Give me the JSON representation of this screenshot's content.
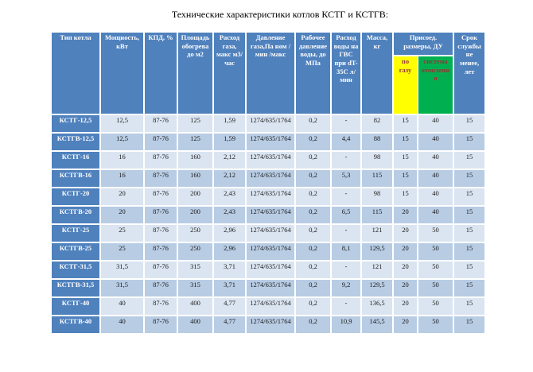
{
  "title": "Технические характеристики котлов КСТГ и КСТГВ:",
  "table": {
    "group_header": "Присоед. размеры, ДУ",
    "columns": [
      {
        "key": "type",
        "label": "Тип котла"
      },
      {
        "key": "power",
        "label": "Мощность, кВт"
      },
      {
        "key": "efficiency",
        "label": "КПД, %"
      },
      {
        "key": "area",
        "label": "Площадь обогрева до м2"
      },
      {
        "key": "gas_flow",
        "label": "Расход газа, макс м3/час"
      },
      {
        "key": "gas_pressure",
        "label": "Давление газа,Па ном /мин /макс"
      },
      {
        "key": "water_pressure",
        "label": "Рабочее давление воды, до МПа"
      },
      {
        "key": "dhw_flow",
        "label": "Расход воды на ГВС при dT-35С л/мин"
      },
      {
        "key": "mass",
        "label": "Масса, кг"
      },
      {
        "key": "gas_du",
        "label": "по газу"
      },
      {
        "key": "heating_du",
        "label": "система отопления"
      },
      {
        "key": "service_life",
        "label": "Срок службы не менее, лет"
      }
    ],
    "rows": [
      [
        "КСТГ-12,5",
        "12,5",
        "87-76",
        "125",
        "1,59",
        "1274/635/1764",
        "0,2",
        "-",
        "82",
        "15",
        "40",
        "15"
      ],
      [
        "КСТГВ-12,5",
        "12,5",
        "87-76",
        "125",
        "1,59",
        "1274/635/1764",
        "0,2",
        "4,4",
        "88",
        "15",
        "40",
        "15"
      ],
      [
        "КСТГ-16",
        "16",
        "87-76",
        "160",
        "2,12",
        "1274/635/1764",
        "0,2",
        "-",
        "98",
        "15",
        "40",
        "15"
      ],
      [
        "КСТГВ-16",
        "16",
        "87-76",
        "160",
        "2,12",
        "1274/635/1764",
        "0,2",
        "5,3",
        "115",
        "15",
        "40",
        "15"
      ],
      [
        "КСТГ-20",
        "20",
        "87-76",
        "200",
        "2,43",
        "1274/635/1764",
        "0,2",
        "-",
        "98",
        "15",
        "40",
        "15"
      ],
      [
        "КСТГВ-20",
        "20",
        "87-76",
        "200",
        "2,43",
        "1274/635/1764",
        "0,2",
        "6,5",
        "115",
        "20",
        "40",
        "15"
      ],
      [
        "КСТГ-25",
        "25",
        "87-76",
        "250",
        "2,96",
        "1274/635/1764",
        "0,2",
        "-",
        "121",
        "20",
        "50",
        "15"
      ],
      [
        "КСТГВ-25",
        "25",
        "87-76",
        "250",
        "2,96",
        "1274/635/1764",
        "0,2",
        "8,1",
        "129,5",
        "20",
        "50",
        "15"
      ],
      [
        "КСТГ-31,5",
        "31,5",
        "87-76",
        "315",
        "3,71",
        "1274/635/1764",
        "0,2",
        "-",
        "121",
        "20",
        "50",
        "15"
      ],
      [
        "КСТГВ-31,5",
        "31,5",
        "87-76",
        "315",
        "3,71",
        "1274/635/1764",
        "0,2",
        "9,2",
        "129,5",
        "20",
        "50",
        "15"
      ],
      [
        "КСТГ-40",
        "40",
        "87-76",
        "400",
        "4,77",
        "1274/635/1764",
        "0,2",
        "-",
        "136,5",
        "20",
        "50",
        "15"
      ],
      [
        "КСТГВ-40",
        "40",
        "87-76",
        "400",
        "4,77",
        "1274/635/1764",
        "0,2",
        "10,9",
        "145,5",
        "20",
        "50",
        "15"
      ]
    ],
    "colors": {
      "header_bg": "#4f81bd",
      "header_text": "#ffffff",
      "row_light": "#dbe5f1",
      "row_medium": "#b8cce4",
      "gas_du_bg": "#ffff00",
      "heating_du_bg": "#00b050",
      "sub_header_text": "#953735",
      "border": "#ffffff"
    }
  }
}
